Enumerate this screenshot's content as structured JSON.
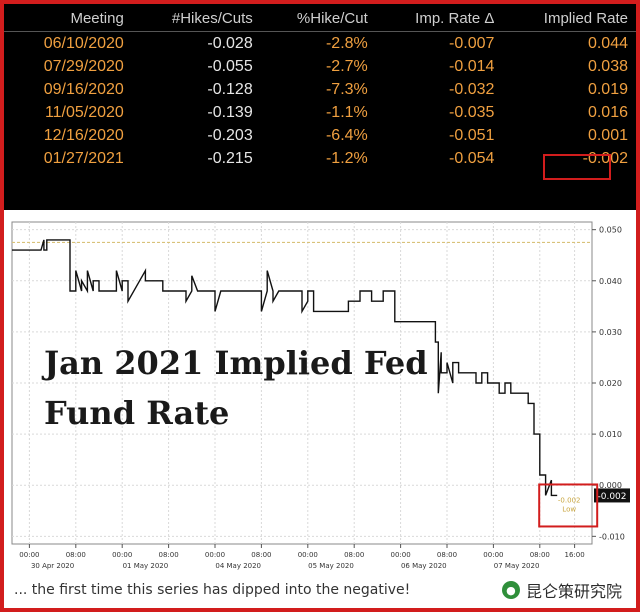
{
  "table": {
    "columns": [
      "Meeting",
      "#Hikes/Cuts",
      "%Hike/Cut",
      "Imp. Rate Δ",
      "Implied Rate"
    ],
    "rows": [
      [
        "06/10/2020",
        "-0.028",
        "-2.8%",
        "-0.007",
        "0.044"
      ],
      [
        "07/29/2020",
        "-0.055",
        "-2.7%",
        "-0.014",
        "0.038"
      ],
      [
        "09/16/2020",
        "-0.128",
        "-7.3%",
        "-0.032",
        "0.019"
      ],
      [
        "11/05/2020",
        "-0.139",
        "-1.1%",
        "-0.035",
        "0.016"
      ],
      [
        "12/16/2020",
        "-0.203",
        "-6.4%",
        "-0.051",
        "0.001"
      ],
      [
        "01/27/2021",
        "-0.215",
        "-1.2%",
        "-0.054",
        "-0.002"
      ]
    ],
    "highlighted_cell": {
      "row": 5,
      "column": 4
    }
  },
  "colors": {
    "frame": "#d21d1d",
    "table_bg": "#000000",
    "table_values": "#f0a040",
    "line": "#111111",
    "reference_line": "#d9c27a",
    "grid": "#d9d9d9"
  },
  "overlay": {
    "line1": "Jan 2021 Implied Fed",
    "line2": "Fund Rate"
  },
  "caption": "... the first time this series has dipped into the negative!",
  "watermark": "昆仑策研究院",
  "chart_data": {
    "type": "line",
    "title": "",
    "xlabel": "",
    "ylabel": "",
    "ylim": [
      -0.0115,
      0.0515
    ],
    "yticks": [
      0.05,
      0.04,
      0.03,
      0.02,
      0.01,
      0.0,
      -0.01
    ],
    "ytick_labels": [
      "0.050",
      "0.040",
      "0.030",
      "0.020",
      "0.010",
      "0.000",
      "-0.010"
    ],
    "xlim": [
      0,
      100
    ],
    "x_ticks": [
      {
        "x": 3,
        "label": "00:00"
      },
      {
        "x": 11,
        "label": "08:00"
      },
      {
        "x": 19,
        "label": "00:00"
      },
      {
        "x": 27,
        "label": "08:00"
      },
      {
        "x": 35,
        "label": "00:00"
      },
      {
        "x": 43,
        "label": "08:00"
      },
      {
        "x": 51,
        "label": "00:00"
      },
      {
        "x": 59,
        "label": "08:00"
      },
      {
        "x": 67,
        "label": "00:00"
      },
      {
        "x": 75,
        "label": "08:00"
      },
      {
        "x": 83,
        "label": "00:00"
      },
      {
        "x": 91,
        "label": "08:00"
      },
      {
        "x": 97,
        "label": "16:00"
      }
    ],
    "date_labels": [
      {
        "x": 7,
        "label": "30 Apr 2020"
      },
      {
        "x": 23,
        "label": "01 May 2020"
      },
      {
        "x": 39,
        "label": "04 May 2020"
      },
      {
        "x": 55,
        "label": "05 May 2020"
      },
      {
        "x": 71,
        "label": "06 May 2020"
      },
      {
        "x": 87,
        "label": "07 May 2020"
      }
    ],
    "reference_line": 0.0475,
    "last_value_label": "-0.002",
    "annotation": {
      "x": 94,
      "y": -0.0022,
      "text1": "-0.002",
      "text2": "Low"
    },
    "series": [
      {
        "x": [
          0,
          5,
          5.5,
          5.5,
          6,
          6,
          10,
          10,
          11,
          11,
          12,
          12,
          13,
          13,
          14,
          14,
          15,
          15,
          18,
          18,
          19,
          19,
          20,
          20,
          22,
          22,
          23,
          23,
          26,
          26,
          30,
          30,
          31,
          31,
          32,
          32,
          35,
          35,
          36,
          36,
          43,
          43,
          44,
          44,
          45,
          45,
          46,
          46,
          50,
          50,
          51,
          51,
          52,
          52,
          58,
          58,
          60,
          60,
          62,
          62,
          64,
          64,
          66,
          66,
          73,
          73,
          73.5,
          73.5,
          74,
          74,
          75,
          75,
          76,
          76,
          77,
          77,
          80,
          80,
          81,
          81,
          82,
          82,
          84,
          84,
          85,
          85,
          86,
          86,
          89,
          89,
          90,
          90,
          91,
          91,
          92,
          92,
          93,
          93,
          94,
          94
        ],
        "y": [
          0.046,
          0.046,
          0.048,
          0.046,
          0.046,
          0.048,
          0.048,
          0.038,
          0.038,
          0.042,
          0.038,
          0.04,
          0.038,
          0.042,
          0.038,
          0.04,
          0.04,
          0.038,
          0.038,
          0.042,
          0.038,
          0.04,
          0.04,
          0.036,
          0.04,
          0.04,
          0.042,
          0.04,
          0.04,
          0.038,
          0.038,
          0.036,
          0.038,
          0.041,
          0.038,
          0.038,
          0.038,
          0.034,
          0.038,
          0.038,
          0.038,
          0.034,
          0.038,
          0.042,
          0.038,
          0.036,
          0.038,
          0.038,
          0.038,
          0.034,
          0.036,
          0.038,
          0.038,
          0.034,
          0.034,
          0.036,
          0.036,
          0.038,
          0.038,
          0.036,
          0.036,
          0.038,
          0.038,
          0.032,
          0.032,
          0.028,
          0.028,
          0.018,
          0.026,
          0.022,
          0.022,
          0.024,
          0.02,
          0.024,
          0.024,
          0.022,
          0.022,
          0.02,
          0.02,
          0.022,
          0.022,
          0.02,
          0.02,
          0.018,
          0.018,
          0.02,
          0.02,
          0.018,
          0.018,
          0.016,
          0.016,
          0.01,
          0.01,
          0.002,
          0.002,
          -0.002,
          0.001,
          -0.002,
          -0.002,
          -0.002
        ]
      }
    ]
  }
}
